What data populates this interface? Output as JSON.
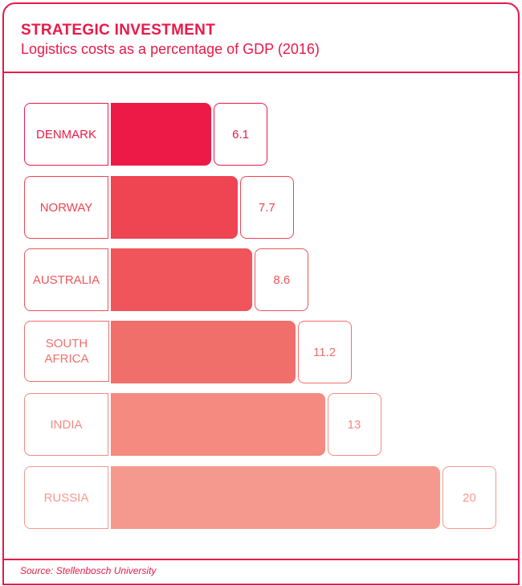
{
  "chart_data": {
    "type": "bar",
    "orientation": "horizontal",
    "title": "STRATEGIC INVESTMENT",
    "subtitle": "Logistics costs as a percentage of GDP (2016)",
    "categories": [
      "DENMARK",
      "NORWAY",
      "AUSTRALIA",
      "SOUTH AFRICA",
      "INDIA",
      "RUSSIA"
    ],
    "values": [
      6.1,
      7.7,
      8.6,
      11.2,
      13,
      20
    ],
    "value_labels": [
      "6.1",
      "7.7",
      "8.6",
      "11.2",
      "13",
      "20"
    ],
    "colors": [
      "#ed1a47",
      "#ef4452",
      "#ef555a",
      "#f06f6b",
      "#f48a80",
      "#f5998f"
    ],
    "xlim": [
      0,
      20
    ],
    "grid": false,
    "source": "Source: Stellenbosch University"
  }
}
